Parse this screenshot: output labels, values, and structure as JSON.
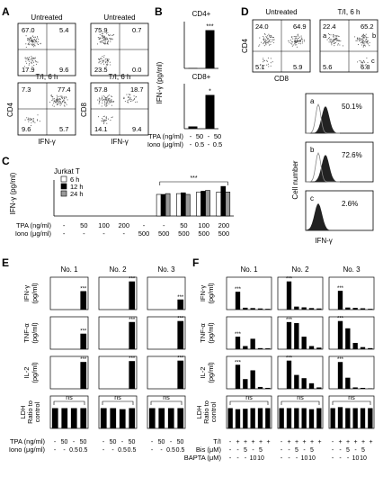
{
  "panels": {
    "A": {
      "letter": "A",
      "plots": [
        {
          "title": "Untreated",
          "q": [
            "67.0",
            "5.4",
            "17.9",
            "9.6"
          ]
        },
        {
          "title": "Untreated",
          "q": [
            "75.9",
            "0.7",
            "23.5",
            "0.0"
          ]
        },
        {
          "title": "T/I, 6 h",
          "q": [
            "7.3",
            "77.4",
            "9.6",
            "5.7"
          ]
        },
        {
          "title": "T/I, 6 h",
          "q": [
            "57.8",
            "18.7",
            "14.1",
            "9.4"
          ]
        }
      ],
      "ylabels": [
        "CD4",
        "CD8"
      ],
      "xlabels": [
        "IFN-γ",
        "IFN-γ"
      ]
    },
    "B": {
      "letter": "B",
      "ylabel": "IFN-γ (pg/ml)",
      "row_labels": [
        "TPA (ng/ml)",
        "Iono (μg/ml)"
      ],
      "col_values_tpa": [
        "-",
        "50",
        "-",
        "50"
      ],
      "col_values_iono": [
        "-",
        "0.5",
        "-",
        "0.5"
      ],
      "sig": "***"
    },
    "C": {
      "letter": "C",
      "title": "Jurkat T",
      "ylabel": "IFN-γ (pg/ml)",
      "row_labels": [
        "TPA (ng/ml)",
        "Iono (μg/ml)"
      ],
      "tpa": [
        "-",
        "50",
        "100",
        "200",
        "-",
        "-",
        "50",
        "100",
        "200"
      ],
      "iono": [
        "-",
        "-",
        "-",
        "-",
        "500",
        "500",
        "500",
        "500",
        "500"
      ],
      "sig": "***"
    },
    "D": {
      "letter": "D",
      "plots": [
        {
          "title": "Untreated",
          "q": [
            "24.0",
            "64.9",
            "5.1",
            "5.9"
          ]
        },
        {
          "title": "T/I, 6 h",
          "q": [
            "22.4",
            "65.2",
            "5.6",
            "6.8"
          ]
        }
      ],
      "ylabel": "CD4",
      "xlabel": "CD8",
      "gates": [
        "a",
        "b",
        "c"
      ],
      "hist_letters": [
        "a",
        "b",
        "c"
      ],
      "hist_pcts": [
        "50.1%",
        "72.6%",
        "2.6%"
      ],
      "hist_ylabel": "Cell number",
      "hist_xlabel": "IFN-γ"
    },
    "E": {
      "letter": "E",
      "groups": [
        "No. 1",
        "No. 2",
        "No. 3"
      ],
      "row_labels": [
        "TPA (ng/ml)",
        "Iono (μg/ml)"
      ],
      "tpa": [
        "-",
        "50",
        "-",
        "50"
      ],
      "iono": [
        "-",
        "-",
        "0.5",
        "0.5"
      ],
      "sig": "***",
      "ns": "ns"
    },
    "F": {
      "letter": "F",
      "groups": [
        "No. 1",
        "No. 2",
        "No. 3"
      ],
      "row_labels": [
        "T/I",
        "Bis (μM)",
        "BAPTA (μM)"
      ],
      "ti": [
        "-",
        "+",
        "+",
        "+",
        "+",
        "+"
      ],
      "bis": [
        "-",
        "-",
        "5",
        "-",
        "5",
        ""
      ],
      "bapta": [
        "-",
        "-",
        "-",
        "10",
        "10",
        ""
      ],
      "sig": "***",
      "ns": "ns"
    },
    "EF_rows": [
      "IFN-γ (pg/ml)",
      "TNF-α (pg/ml)",
      "IL-2 (pg/ml)",
      "LDH Ratio to control"
    ]
  },
  "chart_data": [
    {
      "panel": "B",
      "type": "bar",
      "series": [
        {
          "name": "CD4+",
          "values": [
            5,
            490
          ],
          "ylim": [
            0,
            600
          ]
        },
        {
          "name": "CD8+",
          "values": [
            1,
            15
          ],
          "ylim": [
            0,
            20
          ]
        }
      ],
      "sig": [
        "***",
        "*"
      ]
    },
    {
      "panel": "C",
      "type": "bar",
      "title": "Jurkat T",
      "ylabel": "IFN-γ (pg/ml)",
      "ylim": [
        0,
        45
      ],
      "series": [
        {
          "name": "6 h",
          "values": [
            0,
            0,
            0,
            0,
            0,
            27,
            28,
            30,
            30
          ]
        },
        {
          "name": "12 h",
          "values": [
            0,
            0,
            0,
            0,
            0,
            27,
            29,
            31,
            37
          ]
        },
        {
          "name": "24 h",
          "values": [
            0,
            0,
            0,
            0,
            0,
            28,
            27,
            32,
            30
          ]
        }
      ]
    },
    {
      "panel": "D",
      "type": "histogram",
      "hist_pcts": [
        "50.1%",
        "72.6%",
        "2.6%"
      ],
      "xlabel": "IFN-γ",
      "ylabel": "Cell number"
    },
    {
      "panel": "E",
      "type": "bar",
      "categories": [
        "No. 1",
        "No. 2",
        "No. 3"
      ],
      "rows": [
        {
          "name": "IFN-γ (pg/ml)",
          "values": [
            [
              0,
              0,
              0,
              950
            ],
            [
              0,
              0,
              0,
              1450
            ],
            [
              0,
              0,
              0,
              520
            ]
          ]
        },
        {
          "name": "TNF-α (pg/ml)",
          "values": [
            [
              0,
              0,
              0,
              1600
            ],
            [
              0,
              0,
              0,
              2800
            ],
            [
              0,
              0,
              0,
              2900
            ]
          ]
        },
        {
          "name": "IL-2 (pg/ml)",
          "values": [
            [
              0,
              0,
              0,
              6000
            ],
            [
              0,
              0,
              0,
              6200
            ],
            [
              0,
              0,
              0,
              6300
            ]
          ]
        },
        {
          "name": "LDH Ratio to control",
          "values": [
            [
              1.0,
              1.0,
              1.0,
              1.0
            ],
            [
              1.0,
              1.0,
              0.95,
              1.0
            ],
            [
              1.0,
              1.0,
              1.0,
              1.0
            ]
          ]
        }
      ]
    },
    {
      "panel": "F",
      "type": "bar",
      "categories": [
        "No. 1",
        "No. 2",
        "No. 3"
      ],
      "rows": [
        {
          "name": "IFN-γ (pg/ml)",
          "values": [
            [
              0,
              950,
              100,
              80,
              60,
              40
            ],
            [
              0,
              1500,
              160,
              120,
              80,
              60
            ],
            [
              0,
              1000,
              110,
              90,
              70,
              40
            ]
          ]
        },
        {
          "name": "TNF-α (pg/ml)",
          "values": [
            [
              0,
              1200,
              300,
              1000,
              100,
              80
            ],
            [
              0,
              2600,
              2500,
              1200,
              300,
              150
            ],
            [
              0,
              2700,
              2000,
              600,
              200,
              100
            ]
          ]
        },
        {
          "name": "IL-2 (pg/ml)",
          "values": [
            [
              0,
              5200,
              2100,
              4000,
              400,
              200
            ],
            [
              0,
              6100,
              3000,
              2300,
              1200,
              300
            ],
            [
              0,
              5800,
              2400,
              300,
              200,
              100
            ]
          ]
        },
        {
          "name": "LDH Ratio to control",
          "values": [
            [
              1.0,
              0.95,
              0.97,
              1.0,
              1.0,
              1.0
            ],
            [
              1.0,
              1.0,
              1.0,
              1.0,
              0.95,
              1.0
            ],
            [
              1.0,
              1.05,
              1.0,
              1.0,
              1.0,
              1.0
            ]
          ]
        }
      ]
    }
  ]
}
